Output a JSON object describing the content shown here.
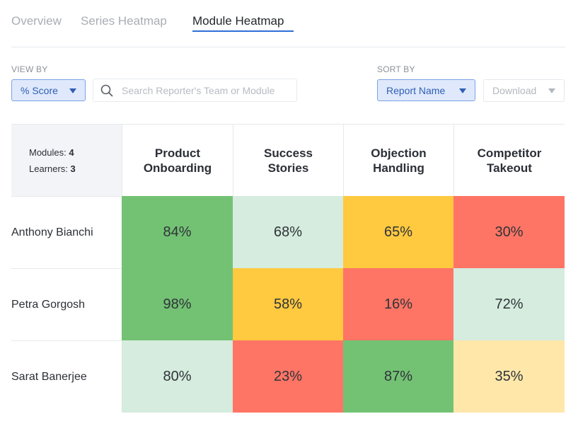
{
  "tabs": [
    {
      "label": "Overview",
      "active": false
    },
    {
      "label": "Series Heatmap",
      "active": false
    },
    {
      "label": "Module Heatmap",
      "active": true
    }
  ],
  "controls": {
    "view_by_label": "VIEW BY",
    "view_by_value": "% Score",
    "search_placeholder": "Search Reporter's Team or Module",
    "sort_by_label": "SORT BY",
    "sort_by_value": "Report Name",
    "download_label": "Download"
  },
  "summary": {
    "modules_label": "Modules:",
    "modules_count": "4",
    "learners_label": "Learners:",
    "learners_count": "3"
  },
  "modules": [
    {
      "line1": "Product",
      "line2": "Onboarding"
    },
    {
      "line1": "Success",
      "line2": "Stories"
    },
    {
      "line1": "Objection",
      "line2": "Handling"
    },
    {
      "line1": "Competitor",
      "line2": "Takeout"
    }
  ],
  "rows": [
    {
      "name": "Anthony Bianchi",
      "scores": [
        "84%",
        "68%",
        "65%",
        "30%"
      ],
      "colors": [
        "#73c274",
        "#d5ecde",
        "#ffc940",
        "#ff7565"
      ]
    },
    {
      "name": "Petra Gorgosh",
      "scores": [
        "98%",
        "58%",
        "16%",
        "72%"
      ],
      "colors": [
        "#73c274",
        "#ffc940",
        "#ff7565",
        "#d5ecde"
      ]
    },
    {
      "name": "Sarat Banerjee",
      "scores": [
        "80%",
        "23%",
        "87%",
        "35%"
      ],
      "colors": [
        "#d5ecde",
        "#ff7565",
        "#73c274",
        "#ffe7aa"
      ]
    }
  ],
  "colors": {
    "accent": "#2f6fd6",
    "high": "#73c274",
    "good": "#d5ecde",
    "medium": "#ffc940",
    "low": "#ff7565",
    "fair": "#ffe7aa"
  }
}
